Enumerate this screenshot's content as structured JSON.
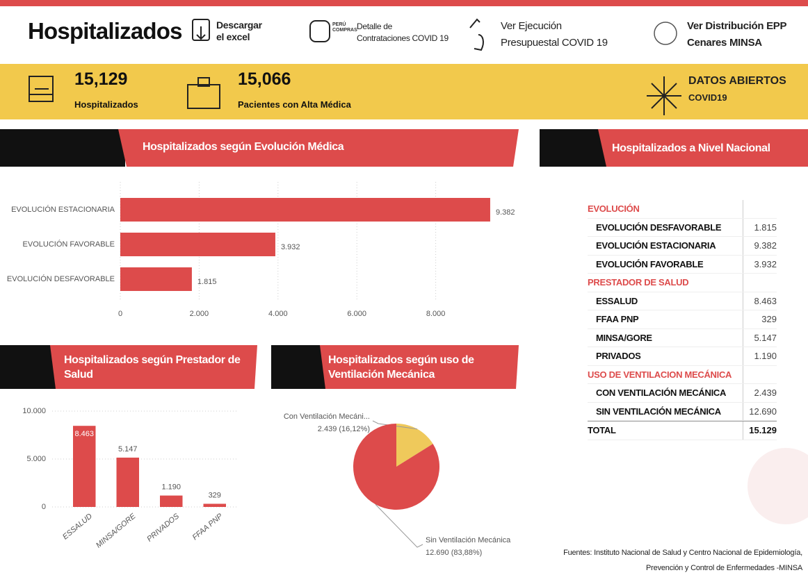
{
  "header": {
    "title": "Hospitalizados",
    "links": [
      {
        "lines": [
          "Descargar",
          "el excel"
        ]
      },
      {
        "logo": [
          "PERÚ",
          "COMPRAS"
        ],
        "lines": [
          "Detalle de",
          "Contrataciones COVID 19"
        ]
      },
      {
        "lines": [
          "Ver Ejecución",
          "Presupuestal COVID 19"
        ]
      },
      {
        "lines": [
          "Ver Distribución EPP",
          "Cenares MINSA"
        ]
      }
    ]
  },
  "kpis": [
    {
      "value": "15,129",
      "label": "Hospitalizados"
    },
    {
      "value": "15,066",
      "label": "Pacientes con Alta Médica"
    }
  ],
  "open_data": {
    "title": "DATOS ABIERTOS",
    "subtitle": "COVID19"
  },
  "chart_data": [
    {
      "type": "hbar",
      "title": "Hospitalizados según Evolución Médica",
      "categories": [
        "EVOLUCIÓN ESTACIONARIA",
        "EVOLUCIÓN FAVORABLE",
        "EVOLUCIÓN DESFAVORABLE"
      ],
      "values": [
        9382,
        3932,
        1815
      ],
      "value_labels": [
        "9.382",
        "3.932",
        "1.815"
      ],
      "color": "#dd4b4b",
      "xlim": [
        0,
        10000
      ],
      "xticks": [
        0,
        {
          "value": 2000,
          "label": "2.000"
        },
        {
          "value": 4000,
          "label": "4.000"
        },
        {
          "value": 6000,
          "label": "6.000"
        },
        {
          "value": 8000,
          "label": "8.000"
        }
      ],
      "grid": true
    },
    {
      "type": "bar",
      "title": "Hospitalizados según Prestador de Salud",
      "categories": [
        "ESSALUD",
        "MINSA/GORE",
        "PRIVADOS",
        "FFAA PNP"
      ],
      "values": [
        8463,
        5147,
        1190,
        329
      ],
      "value_labels": [
        "8.463",
        "5.147",
        "1.190",
        "329"
      ],
      "color": "#dd4b4b",
      "ylim": [
        0,
        10000
      ],
      "yticks": [
        0,
        {
          "value": 5000,
          "label": "5.000"
        },
        {
          "value": 10000,
          "label": "10.000"
        }
      ],
      "grid": true
    },
    {
      "type": "pie",
      "title": "Hospitalizados según uso de Ventilación Mecánica",
      "categories": [
        "Con Ventilación Mecáni...",
        "Sin Ventilación Mecánica"
      ],
      "values": [
        2439,
        12690
      ],
      "value_labels": [
        "2.439 (16,12%)",
        "12.690 (83,88%)"
      ],
      "colors": [
        "#efc95b",
        "#dd4b4b"
      ]
    }
  ],
  "table": {
    "title": "Hospitalizados a Nivel Nacional",
    "groups": [
      {
        "label": "EVOLUCIÓN",
        "rows": [
          [
            "EVOLUCIÓN DESFAVORABLE",
            "1.815"
          ],
          [
            "EVOLUCIÓN ESTACIONARIA",
            "9.382"
          ],
          [
            "EVOLUCIÓN FAVORABLE",
            "3.932"
          ]
        ]
      },
      {
        "label": "PRESTADOR DE SALUD",
        "rows": [
          [
            "ESSALUD",
            "8.463"
          ],
          [
            "FFAA PNP",
            "329"
          ],
          [
            "MINSA/GORE",
            "5.147"
          ],
          [
            "PRIVADOS",
            "1.190"
          ]
        ]
      },
      {
        "label": "USO DE VENTILACION MECÁNICA",
        "rows": [
          [
            "CON VENTILACIÓN MECÁNICA",
            "2.439"
          ],
          [
            "SIN VENTILACIÓN MECÁNICA",
            "12.690"
          ]
        ]
      }
    ],
    "total": [
      "TOTAL",
      "15.129"
    ]
  },
  "footer": {
    "lines": [
      "Fuentes: Instituto Nacional de Salud y Centro Nacional de Epidemiología,",
      "Prevención y Control de Enfermedades -MINSA"
    ]
  }
}
